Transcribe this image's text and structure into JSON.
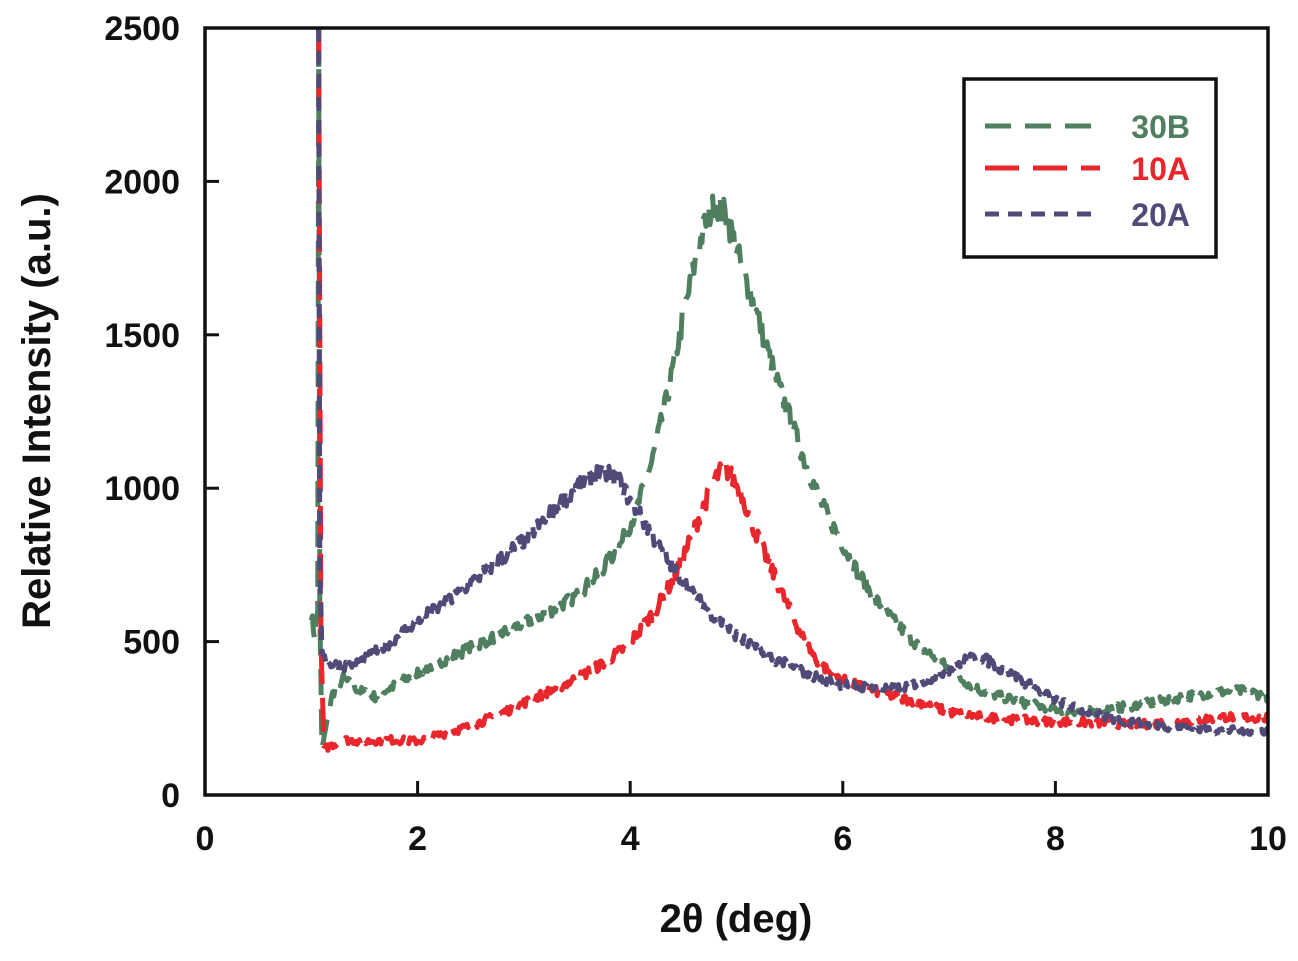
{
  "chart_data": {
    "type": "line",
    "title": "",
    "xlabel": "2θ (deg)",
    "ylabel": "Relative Intensity (a.u.)",
    "xlim": [
      0,
      10
    ],
    "ylim": [
      0,
      2500
    ],
    "xticks": [
      0,
      2,
      4,
      6,
      8,
      10
    ],
    "yticks": [
      0,
      500,
      1000,
      1500,
      2000,
      2500
    ],
    "grid": false,
    "legend_position": "top-right",
    "series": [
      {
        "name": "30B",
        "color": "#4f7f5f",
        "dash": "long-dash-3",
        "x": [
          1.0,
          1.03,
          1.06,
          1.07,
          1.08,
          1.1,
          1.15,
          1.2,
          1.3,
          1.45,
          1.6,
          1.8,
          2.0,
          2.25,
          2.5,
          2.75,
          3.0,
          3.25,
          3.5,
          3.7,
          3.9,
          4.05,
          4.2,
          4.35,
          4.5,
          4.6,
          4.7,
          4.8,
          4.88,
          4.95,
          5.05,
          5.2,
          5.35,
          5.5,
          5.65,
          5.8,
          5.95,
          6.1,
          6.3,
          6.5,
          6.7,
          6.9,
          7.1,
          7.3,
          7.5,
          7.7,
          8.0,
          8.3,
          8.6,
          8.9,
          9.2,
          9.5,
          9.8,
          10.0
        ],
        "y": [
          590,
          520,
          600,
          2500,
          600,
          150,
          240,
          330,
          380,
          340,
          320,
          360,
          400,
          440,
          480,
          520,
          560,
          600,
          650,
          720,
          810,
          920,
          1080,
          1300,
          1560,
          1720,
          1860,
          1930,
          1900,
          1840,
          1720,
          1560,
          1380,
          1230,
          1080,
          950,
          850,
          750,
          640,
          560,
          490,
          440,
          380,
          340,
          320,
          300,
          280,
          270,
          285,
          300,
          320,
          335,
          340,
          320
        ]
      },
      {
        "name": "10A",
        "color": "#e8262b",
        "dash": "long-dash-2",
        "x": [
          1.05,
          1.07,
          1.09,
          1.12,
          1.3,
          1.5,
          1.75,
          2.0,
          2.25,
          2.5,
          2.75,
          3.0,
          3.25,
          3.5,
          3.75,
          3.95,
          4.1,
          4.25,
          4.4,
          4.55,
          4.7,
          4.8,
          4.88,
          4.95,
          5.05,
          5.15,
          5.3,
          5.45,
          5.6,
          5.75,
          5.9,
          6.1,
          6.3,
          6.5,
          6.75,
          7.0,
          7.3,
          7.6,
          8.0,
          8.4,
          8.8,
          9.2,
          9.6,
          10.0
        ],
        "y": [
          2500,
          2500,
          500,
          150,
          180,
          175,
          180,
          175,
          200,
          225,
          260,
          300,
          340,
          380,
          430,
          480,
          540,
          610,
          700,
          820,
          950,
          1030,
          1070,
          1040,
          980,
          880,
          760,
          640,
          530,
          440,
          390,
          360,
          340,
          320,
          300,
          270,
          255,
          245,
          240,
          235,
          230,
          240,
          255,
          250
        ]
      },
      {
        "name": "20A",
        "color": "#4f4a78",
        "dash": "short-dash",
        "x": [
          1.07,
          1.08,
          1.1,
          1.15,
          1.3,
          1.5,
          1.75,
          2.0,
          2.25,
          2.5,
          2.75,
          3.0,
          3.2,
          3.4,
          3.55,
          3.7,
          3.8,
          3.9,
          4.0,
          4.15,
          4.3,
          4.45,
          4.6,
          4.8,
          5.0,
          5.25,
          5.5,
          5.75,
          6.0,
          6.25,
          6.5,
          6.75,
          7.0,
          7.15,
          7.3,
          7.5,
          7.75,
          8.0,
          8.25,
          8.5,
          8.75,
          9.0,
          9.3,
          9.6,
          10.0
        ],
        "y": [
          2500,
          700,
          480,
          430,
          420,
          440,
          500,
          570,
          620,
          690,
          760,
          830,
          900,
          970,
          1020,
          1050,
          1050,
          1020,
          960,
          880,
          790,
          720,
          650,
          580,
          520,
          460,
          420,
          385,
          360,
          350,
          345,
          370,
          410,
          440,
          450,
          410,
          360,
          310,
          275,
          250,
          235,
          225,
          215,
          210,
          210
        ]
      }
    ]
  }
}
